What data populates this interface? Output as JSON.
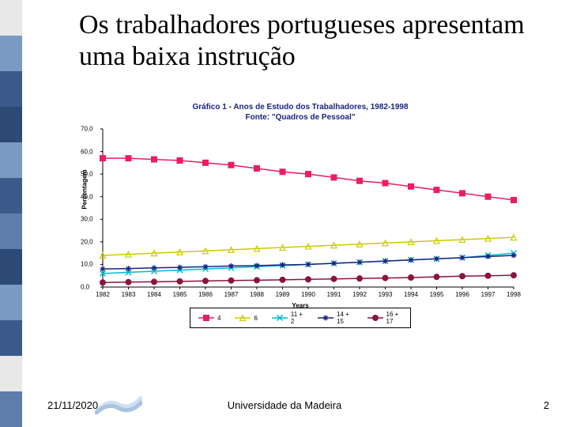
{
  "title": "Os trabalhadores portugueses apresentam uma baixa instrução",
  "chart": {
    "type": "line",
    "title_line1": "Gráfico 1 - Anos de Estudo dos Trabalhadores, 1982-1998",
    "title_line2": "Fonte: \"Quadros de Pessoal\"",
    "title_color": "#1a237e",
    "title_fontsize": 10,
    "background_color": "#ffffff",
    "ylabel": "Percentagem",
    "xlabel": "Years",
    "ylim": [
      0,
      70
    ],
    "ytick_step": 10,
    "yticks": [
      "0,0",
      "10,0",
      "20,0",
      "30,0",
      "40,0",
      "50,0",
      "60,0",
      "70,0"
    ],
    "xticks": [
      "1982",
      "1983",
      "1984",
      "1985",
      "1986",
      "1987",
      "1988",
      "1989",
      "1990",
      "1991",
      "1992",
      "1993",
      "1994",
      "1995",
      "1996",
      "1997",
      "1998"
    ],
    "series": [
      {
        "name": "4",
        "color": "#e91e63",
        "marker": "square",
        "values": [
          57,
          57,
          56.5,
          56,
          55,
          54,
          52.5,
          51,
          50,
          48.5,
          47,
          46,
          44.5,
          43,
          41.5,
          40,
          38.5
        ]
      },
      {
        "name": "6",
        "color": "#cccc00",
        "marker": "triangle",
        "values": [
          14,
          14.5,
          15,
          15.5,
          16,
          16.5,
          17,
          17.5,
          18,
          18.5,
          19,
          19.5,
          20,
          20.5,
          21,
          21.5,
          22
        ]
      },
      {
        "name": "11 + 2",
        "color": "#00bcd4",
        "marker": "x",
        "values": [
          6,
          6.5,
          7,
          7.5,
          8,
          8.5,
          9,
          9.5,
          10,
          10.5,
          11,
          11.5,
          12,
          12.5,
          13,
          14,
          15
        ]
      },
      {
        "name": "14 + 15",
        "color": "#1a237e",
        "marker": "asterisk",
        "values": [
          8,
          8.2,
          8.5,
          8.7,
          9,
          9.3,
          9.5,
          9.8,
          10,
          10.5,
          11,
          11.5,
          12,
          12.5,
          13,
          13.5,
          14
        ]
      },
      {
        "name": "16 + 17",
        "color": "#8b1538",
        "marker": "circle",
        "values": [
          2,
          2.2,
          2.3,
          2.5,
          2.7,
          2.9,
          3,
          3.2,
          3.4,
          3.6,
          3.8,
          4,
          4.2,
          4.5,
          4.8,
          5,
          5.2
        ]
      }
    ],
    "legend_font_size": 8
  },
  "footer": {
    "date": "21/11/2020",
    "uni": "Universidade da Madeira",
    "page": "2"
  },
  "decorative_bar": {
    "colors": [
      "#e8e8e8",
      "#7a9ac4",
      "#3a5a8a",
      "#2c4a75",
      "#7a9ac4",
      "#3a5a8a",
      "#5d7dab",
      "#2c4a75",
      "#7a9ac4",
      "#3a5a8a",
      "#e8e8e8",
      "#5d7dab"
    ]
  }
}
